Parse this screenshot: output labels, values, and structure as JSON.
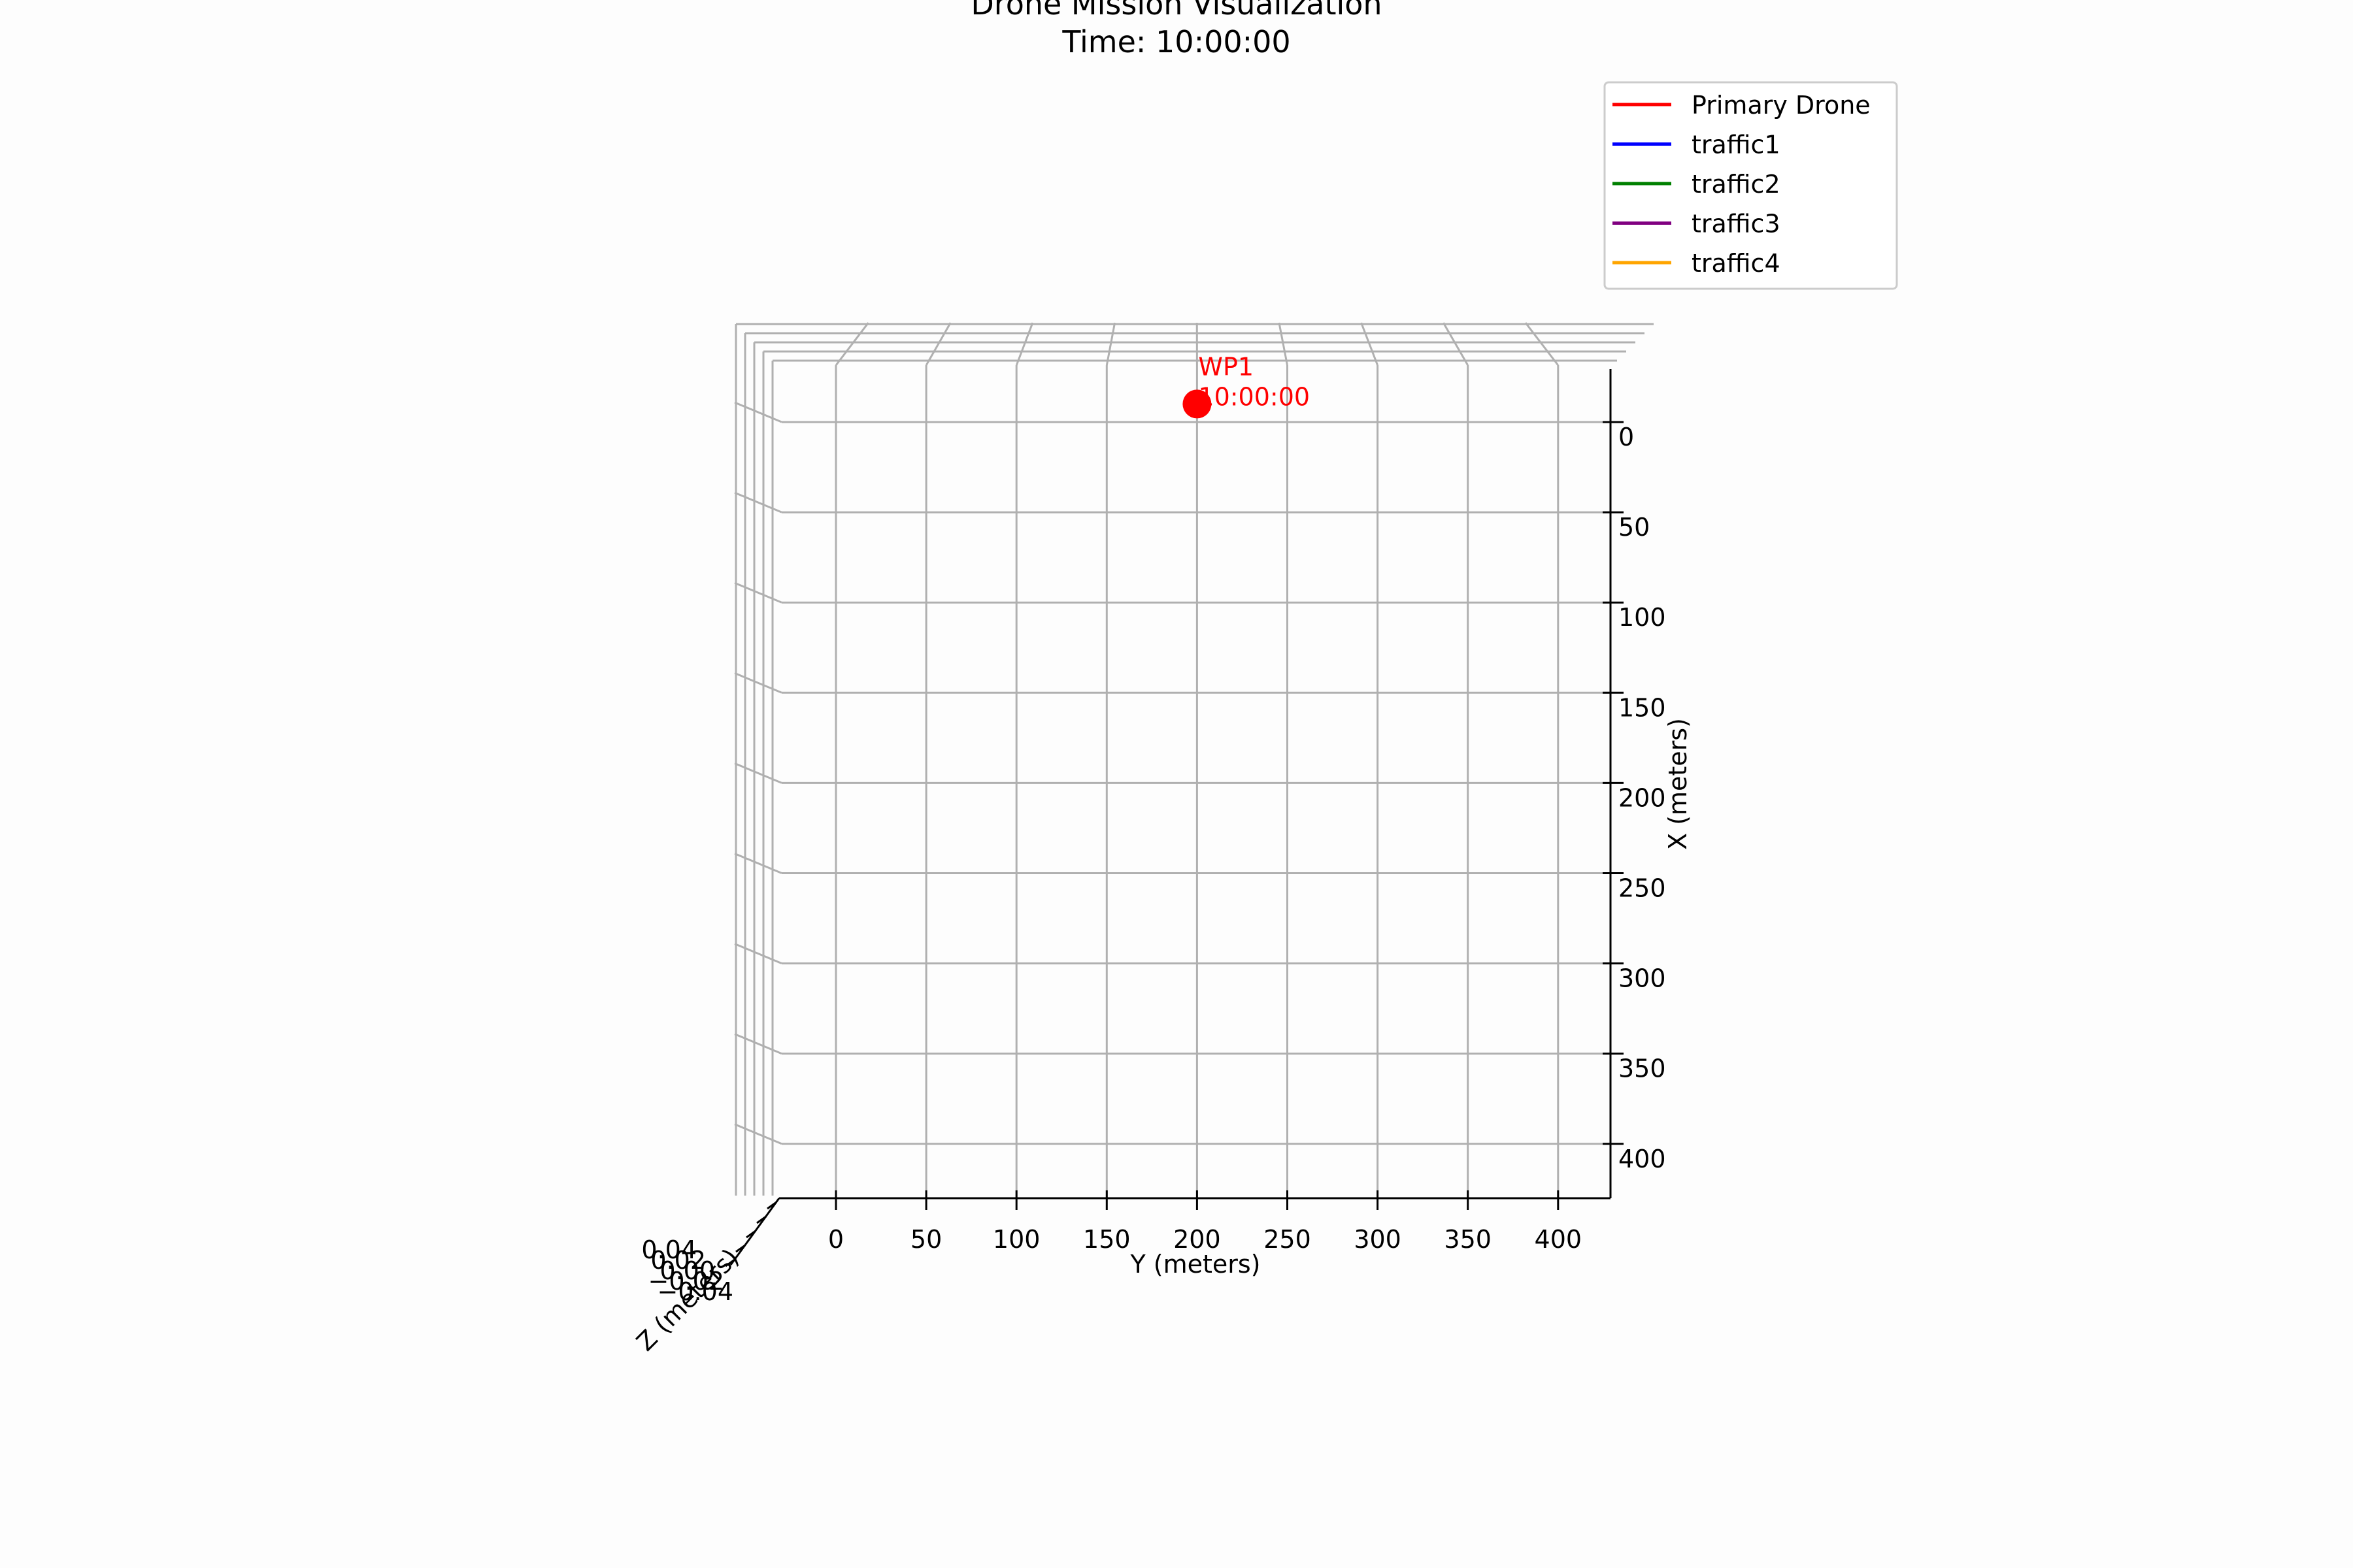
{
  "chart_data": {
    "type": "line",
    "projection": "3d",
    "title": "Drone Mission Visualization",
    "subtitle": "Time: 10:00:00",
    "xlabel": "X (meters)",
    "ylabel": "Y (meters)",
    "zlabel": "Z (meters)",
    "x_ticks": [
      "0",
      "50",
      "100",
      "150",
      "200",
      "250",
      "300",
      "350",
      "400"
    ],
    "y_ticks": [
      "0",
      "50",
      "100",
      "150",
      "200",
      "250",
      "300",
      "350",
      "400"
    ],
    "z_ticks": [
      "0.04",
      "0.02",
      "0.00",
      "−0.02",
      "−0.04"
    ],
    "xlim": [
      -30,
      430
    ],
    "ylim": [
      -30,
      430
    ],
    "zlim": [
      -0.05,
      0.05
    ],
    "grid": true,
    "legend_position": "top-right",
    "colors": {
      "Primary Drone": "#ff0000",
      "traffic1": "#0000ff",
      "traffic2": "#008000",
      "traffic3": "#800080",
      "traffic4": "#ffa500"
    },
    "legend": [
      "Primary Drone",
      "traffic1",
      "traffic2",
      "traffic3",
      "traffic4"
    ],
    "waypoints": [
      {
        "label": "WP1",
        "time": "10:00:00",
        "x": -10,
        "y": 200,
        "z": 0,
        "color": "#ff0000"
      }
    ]
  }
}
